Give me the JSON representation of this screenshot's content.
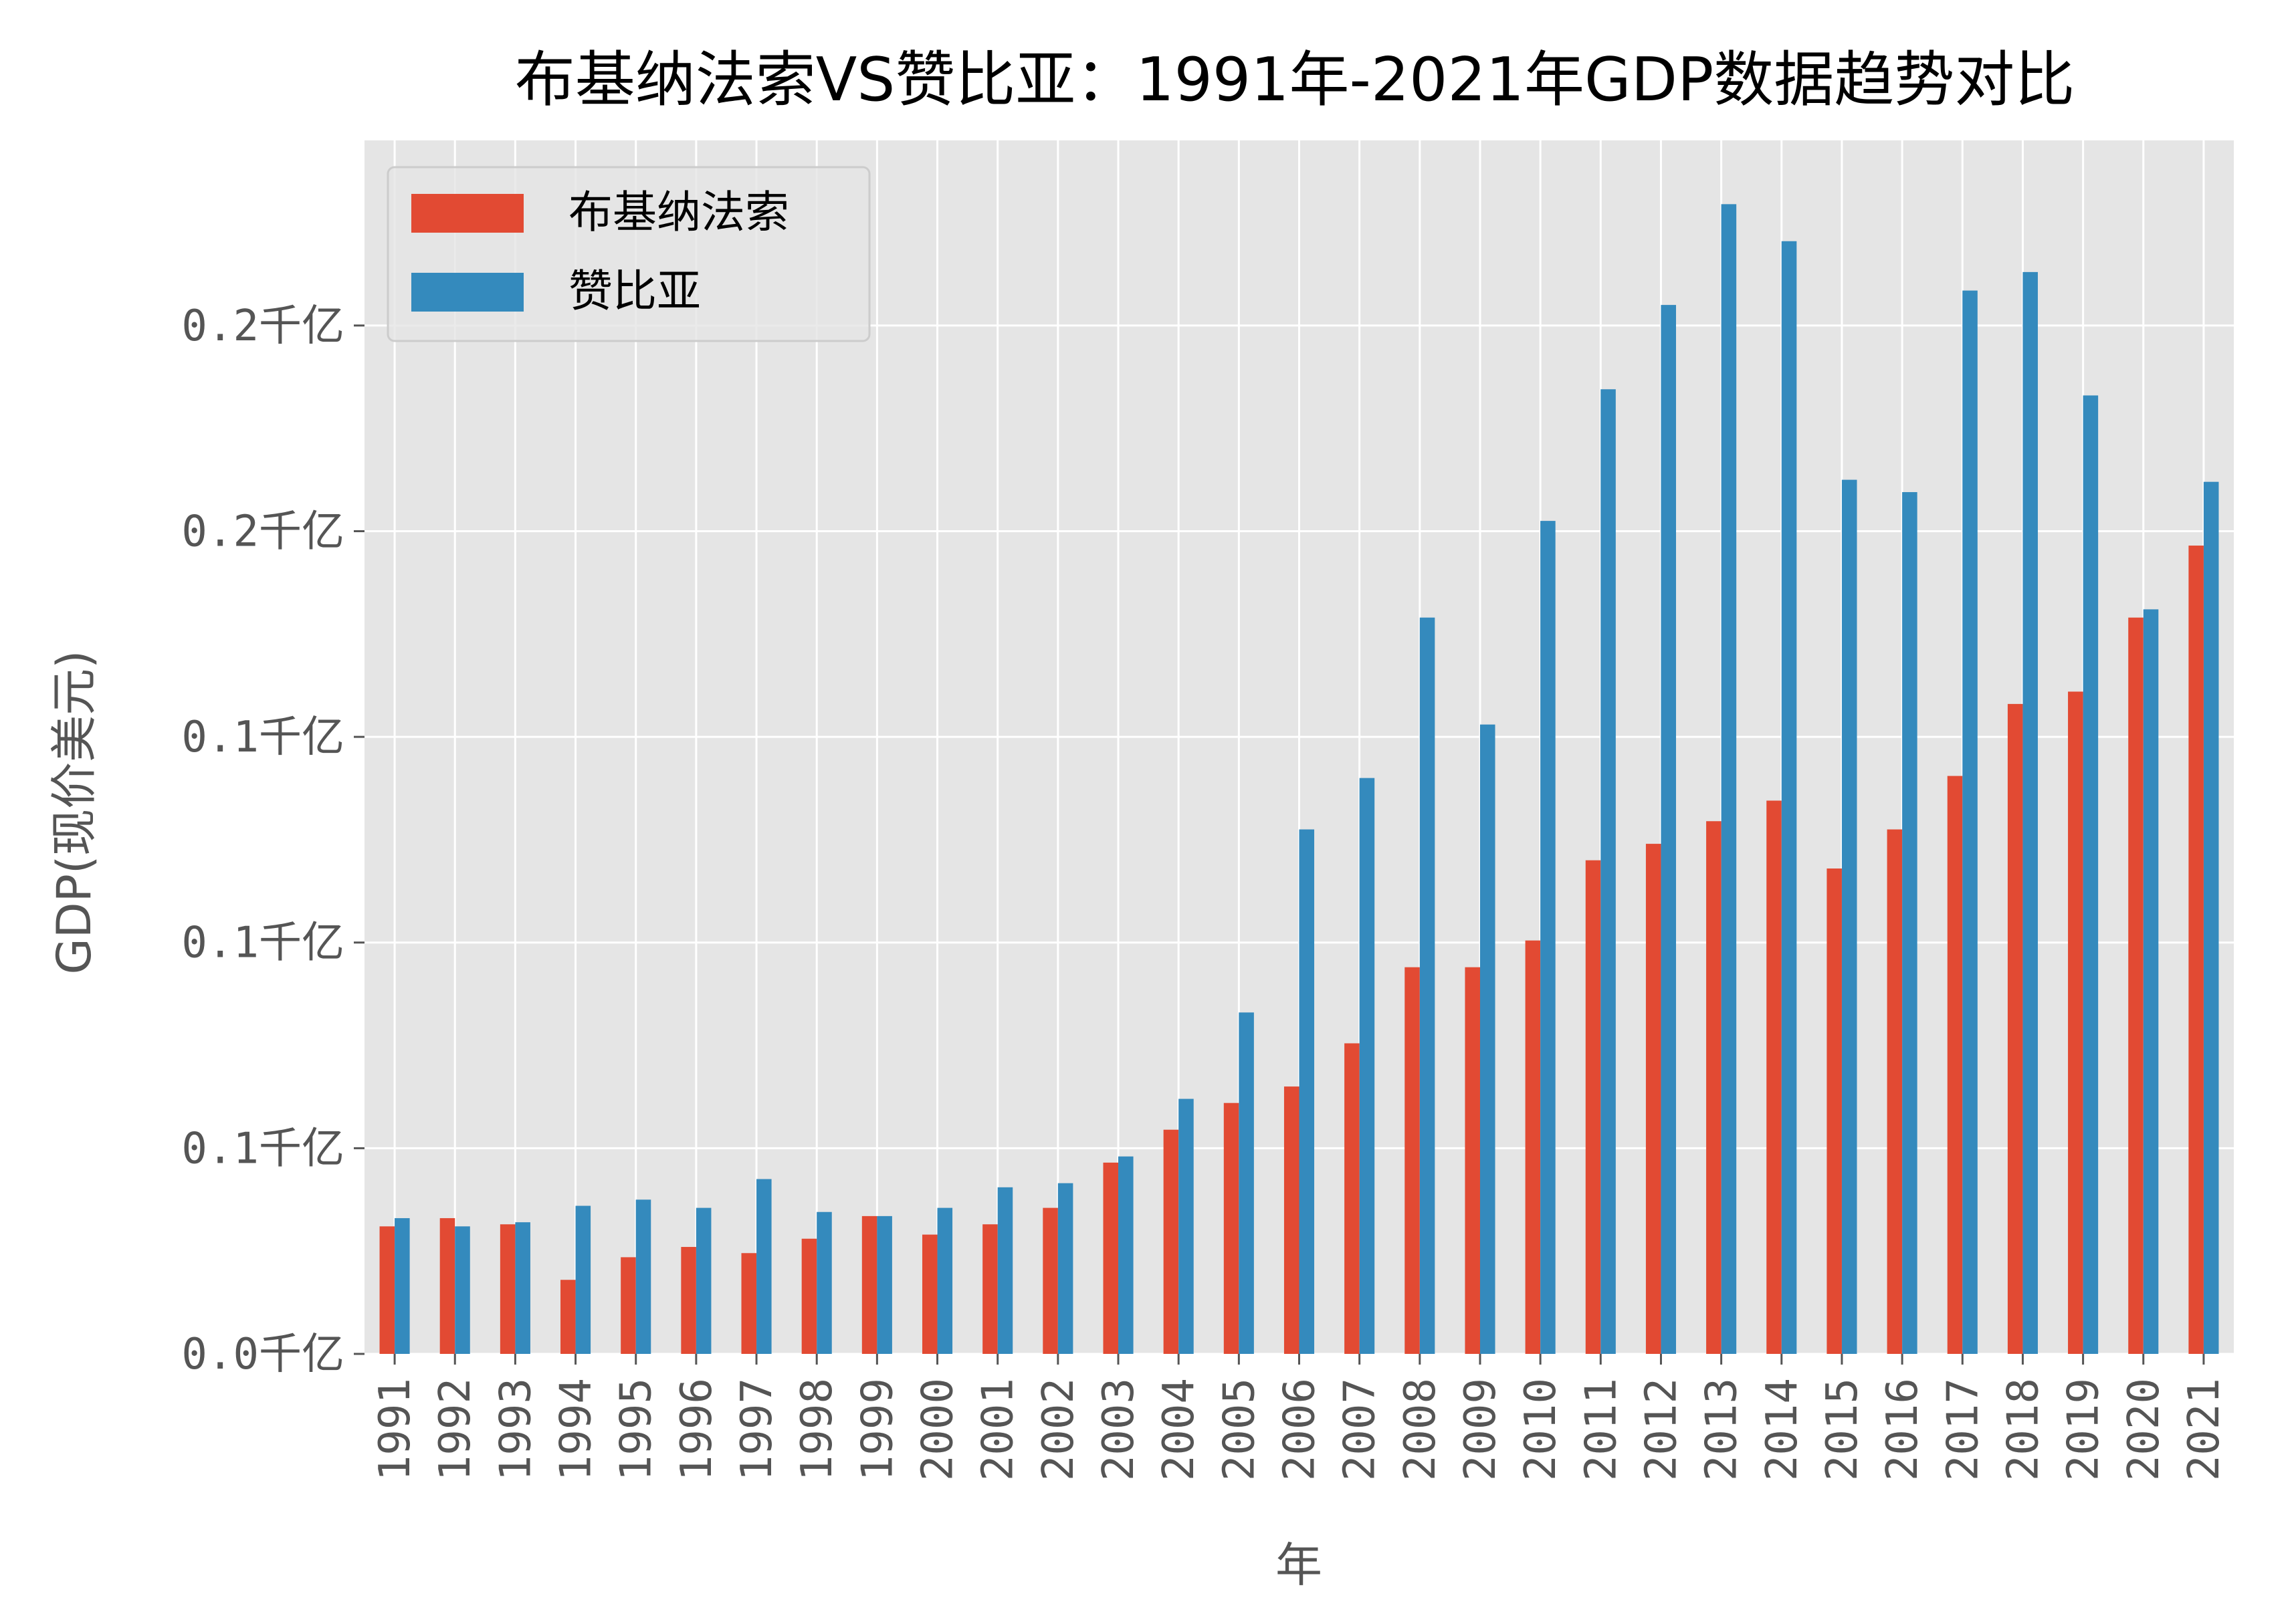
{
  "chart_data": {
    "type": "bar",
    "title": "布基纳法索VS赞比亚：1991年-2021年GDP数据趋势对比",
    "xlabel": "年",
    "ylabel": "GDP(现价美元)",
    "categories": [
      "1991",
      "1992",
      "1993",
      "1994",
      "1995",
      "1996",
      "1997",
      "1998",
      "1999",
      "2000",
      "2001",
      "2002",
      "2003",
      "2004",
      "2005",
      "2006",
      "2007",
      "2008",
      "2009",
      "2010",
      "2011",
      "2012",
      "2013",
      "2014",
      "2015",
      "2016",
      "2017",
      "2018",
      "2019",
      "2020",
      "2021"
    ],
    "ylim": [
      0,
      29.5
    ],
    "y_ticks": [
      {
        "value": 0,
        "label": "0.0千亿"
      },
      {
        "value": 5,
        "label": "0.1千亿"
      },
      {
        "value": 10,
        "label": "0.1千亿"
      },
      {
        "value": 15,
        "label": "0.1千亿"
      },
      {
        "value": 20,
        "label": "0.2千亿"
      },
      {
        "value": 25,
        "label": "0.2千亿"
      }
    ],
    "value_unit": "十亿美元",
    "series": [
      {
        "name": "布基纳法索",
        "color": "#E24A33",
        "values": [
          3.1,
          3.3,
          3.15,
          1.8,
          2.35,
          2.6,
          2.45,
          2.8,
          3.35,
          2.9,
          3.15,
          3.55,
          4.65,
          5.45,
          6.1,
          6.5,
          7.55,
          9.4,
          9.4,
          10.05,
          12.0,
          12.4,
          12.95,
          13.45,
          11.8,
          12.75,
          14.05,
          15.8,
          16.1,
          17.9,
          19.65
        ]
      },
      {
        "name": "赞比亚",
        "color": "#348ABD",
        "values": [
          3.3,
          3.1,
          3.2,
          3.6,
          3.75,
          3.55,
          4.25,
          3.45,
          3.35,
          3.55,
          4.05,
          4.15,
          4.8,
          6.2,
          8.3,
          12.75,
          14.0,
          17.9,
          15.3,
          20.25,
          23.45,
          25.5,
          27.95,
          27.05,
          21.25,
          20.95,
          25.85,
          26.3,
          23.3,
          18.1,
          21.2
        ]
      }
    ],
    "legend_position": "top-left",
    "grid": true,
    "style": "ggplot"
  }
}
